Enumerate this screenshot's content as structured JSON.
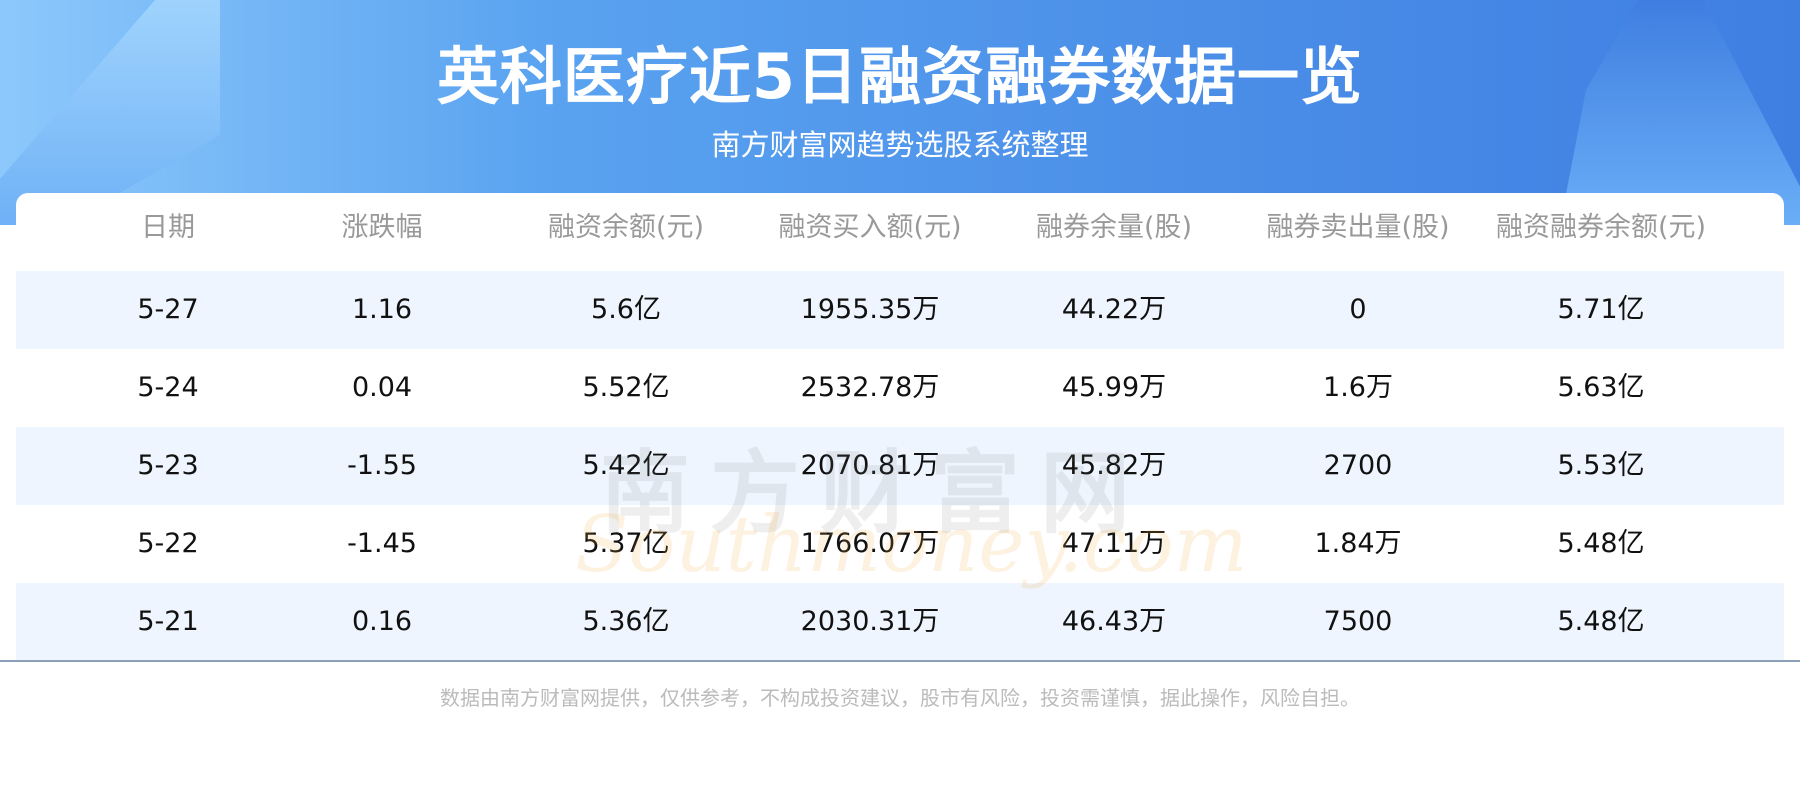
{
  "header": {
    "title": "英科医疗近5日融资融券数据一览",
    "subtitle": "南方财富网趋势选股系统整理"
  },
  "table": {
    "columns": [
      "日期",
      "涨跌幅",
      "融资余额(元)",
      "融资买入额(元)",
      "融券余量(股)",
      "融券卖出量(股)",
      "融资融券余额(元)"
    ],
    "rows": [
      [
        "5-27",
        "1.16",
        "5.6亿",
        "1955.35万",
        "44.22万",
        "0",
        "5.71亿"
      ],
      [
        "5-24",
        "0.04",
        "5.52亿",
        "2532.78万",
        "45.99万",
        "1.6万",
        "5.63亿"
      ],
      [
        "5-23",
        "-1.55",
        "5.42亿",
        "2070.81万",
        "45.82万",
        "2700",
        "5.53亿"
      ],
      [
        "5-22",
        "-1.45",
        "5.37亿",
        "1766.07万",
        "47.11万",
        "1.84万",
        "5.48亿"
      ],
      [
        "5-21",
        "0.16",
        "5.36亿",
        "2030.31万",
        "46.43万",
        "7500",
        "5.48亿"
      ]
    ]
  },
  "watermark": {
    "cn": "南方财富网",
    "en": "Southmoney.com"
  },
  "footer": "数据由南方财富网提供，仅供参考，不构成投资建议，股市有风险，投资需谨慎，据此操作，风险自担。",
  "colors": {
    "accent": "#4b8fe8",
    "row_alt": "#eef5fe",
    "divider": "#8aa0b8"
  }
}
